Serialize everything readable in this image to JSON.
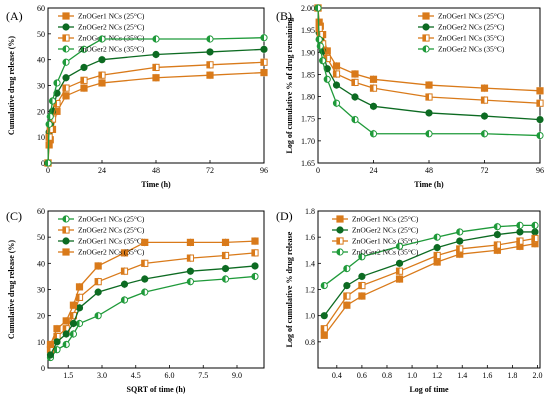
{
  "figure": {
    "colors": {
      "orange": "#d97a1a",
      "green": "#1f9a3a",
      "dark_green": "#0d6b22",
      "black": "#000000"
    }
  },
  "chart_data": [
    {
      "panel_label": "(A)",
      "type": "line",
      "xlabel": "Time (h)",
      "ylabel": "Cumulative drug release (%)",
      "xlim": [
        0,
        96
      ],
      "ylim": [
        0,
        60
      ],
      "xticks": [
        "0",
        "24",
        "48",
        "72",
        "96"
      ],
      "yticks": [
        "0",
        "10",
        "20",
        "30",
        "40",
        "50",
        "60"
      ],
      "legend": "top-left",
      "x": [
        0,
        0.5,
        1,
        2,
        4,
        8,
        16,
        24,
        48,
        72,
        96
      ],
      "series": [
        {
          "name": "ZnOGer1 NCs (25°C)",
          "marker": "square",
          "fill": "full",
          "color": "#d97a1a",
          "values": [
            0,
            7,
            9,
            13,
            20,
            26,
            29,
            31,
            33,
            34,
            35
          ]
        },
        {
          "name": "ZnOGer2 NCs (25°C)",
          "marker": "circle",
          "fill": "full",
          "color": "#0d6b22",
          "values": [
            0,
            12,
            15,
            20,
            27,
            33,
            37,
            40,
            42,
            43,
            44
          ]
        },
        {
          "name": "ZnOGer1 NCs (35°C)",
          "marker": "square",
          "fill": "half",
          "color": "#d97a1a",
          "values": [
            0,
            10,
            13,
            17,
            23,
            29,
            32,
            34,
            37,
            38,
            39
          ]
        },
        {
          "name": "ZnOGer2 NCs (35°C)",
          "marker": "circle",
          "fill": "half",
          "color": "#1f9a3a",
          "values": [
            0,
            15,
            18,
            24,
            31,
            39,
            44,
            48,
            48,
            48,
            48.5
          ]
        }
      ]
    },
    {
      "panel_label": "(B)",
      "type": "line",
      "xlabel": "Time (h)",
      "ylabel": "Log of cumulative % of drug remaining",
      "xlim": [
        0,
        96
      ],
      "ylim": [
        1.65,
        2.0
      ],
      "xticks": [
        "0",
        "24",
        "48",
        "72",
        "96"
      ],
      "yticks": [
        "1.65",
        "1.70",
        "1.75",
        "1.80",
        "1.85",
        "1.90",
        "1.95",
        "2.00"
      ],
      "legend": "top-right",
      "x": [
        0,
        0.5,
        1,
        2,
        4,
        8,
        16,
        24,
        48,
        72,
        96
      ],
      "series": [
        {
          "name": "ZnOGer1 NCs (25°C)",
          "marker": "square",
          "fill": "full",
          "color": "#d97a1a",
          "values": [
            2.0,
            1.968,
            1.959,
            1.94,
            1.903,
            1.869,
            1.851,
            1.839,
            1.826,
            1.819,
            1.813
          ]
        },
        {
          "name": "ZnOGer2 NCs (25°C)",
          "marker": "circle",
          "fill": "full",
          "color": "#0d6b22",
          "values": [
            2.0,
            1.944,
            1.929,
            1.903,
            1.863,
            1.826,
            1.799,
            1.778,
            1.763,
            1.756,
            1.748
          ]
        },
        {
          "name": "ZnOGer1 NCs (35°C)",
          "marker": "square",
          "fill": "half",
          "color": "#d97a1a",
          "values": [
            2.0,
            1.954,
            1.94,
            1.919,
            1.886,
            1.851,
            1.832,
            1.819,
            1.799,
            1.792,
            1.785
          ]
        },
        {
          "name": "ZnOGer2 NCs (35°C)",
          "marker": "circle",
          "fill": "half",
          "color": "#1f9a3a",
          "values": [
            2.0,
            1.929,
            1.914,
            1.881,
            1.839,
            1.785,
            1.748,
            1.716,
            1.716,
            1.716,
            1.712
          ]
        }
      ]
    },
    {
      "panel_label": "(C)",
      "type": "line",
      "xlabel": "SQRT of time (h)",
      "ylabel": "Cumulative drug release (%)",
      "xlim": [
        0.6,
        10.2
      ],
      "ylim": [
        0,
        60
      ],
      "xticks": [
        "1.5",
        "3.0",
        "4.5",
        "6.0",
        "7.5",
        "9.0"
      ],
      "xtick_values": [
        1.5,
        3.0,
        4.5,
        6.0,
        7.5,
        9.0
      ],
      "yticks": [
        "0",
        "10",
        "20",
        "30",
        "40",
        "50",
        "60"
      ],
      "legend": "top-left",
      "x": [
        0.71,
        1.0,
        1.41,
        1.73,
        2.0,
        2.83,
        4.0,
        4.9,
        6.93,
        8.49,
        9.8
      ],
      "series": [
        {
          "name": "ZnOGer1 NCs (25°C)",
          "marker": "circle",
          "fill": "half",
          "color": "#1f9a3a",
          "values": [
            4,
            7,
            9,
            13,
            17,
            20,
            26,
            29,
            33,
            34,
            35
          ]
        },
        {
          "name": "ZnOGer2 NCs (25°C)",
          "marker": "square",
          "fill": "half",
          "color": "#d97a1a",
          "values": [
            7,
            12,
            15,
            20,
            27,
            33,
            37,
            40,
            42,
            43,
            44
          ]
        },
        {
          "name": "ZnOGer1 NCs (35°C)",
          "marker": "circle",
          "fill": "full",
          "color": "#0d6b22",
          "values": [
            5,
            10,
            13,
            17,
            23,
            29,
            32,
            34,
            37,
            38,
            39
          ]
        },
        {
          "name": "ZnOGer2 NCs (35°C)",
          "marker": "square",
          "fill": "full",
          "color": "#d97a1a",
          "values": [
            9,
            15,
            18,
            24,
            31,
            39,
            44,
            48,
            48,
            48,
            48.5
          ]
        }
      ]
    },
    {
      "panel_label": "(D)",
      "type": "line",
      "xlabel": "Log of time",
      "ylabel": "Log of cumulative % drug release",
      "xlim": [
        0.25,
        2.02
      ],
      "ylim": [
        0.6,
        1.8
      ],
      "xticks": [
        "0.4",
        "0.6",
        "0.8",
        "1.0",
        "1.2",
        "1.4",
        "1.6",
        "1.8",
        "2.0"
      ],
      "xtick_values": [
        0.4,
        0.6,
        0.8,
        1.0,
        1.2,
        1.4,
        1.6,
        1.8,
        2.0
      ],
      "yticks": [
        "0.8",
        "1.0",
        "1.2",
        "1.4",
        "1.6",
        "1.8"
      ],
      "ytick_values": [
        0.8,
        1.0,
        1.2,
        1.4,
        1.6,
        1.8
      ],
      "legend": "top-left",
      "x": [
        0.3,
        0.48,
        0.6,
        0.9,
        1.2,
        1.38,
        1.68,
        1.86,
        1.98
      ],
      "series": [
        {
          "name": "ZnOGer1 NCs (25°C)",
          "marker": "square",
          "fill": "full",
          "color": "#d97a1a",
          "values": [
            0.85,
            1.08,
            1.15,
            1.28,
            1.41,
            1.47,
            1.5,
            1.53,
            1.55
          ]
        },
        {
          "name": "ZnOGer2 NCs (25°C)",
          "marker": "circle",
          "fill": "full",
          "color": "#0d6b22",
          "values": [
            1.0,
            1.23,
            1.3,
            1.4,
            1.52,
            1.57,
            1.62,
            1.64,
            1.64
          ]
        },
        {
          "name": "ZnOGer1 NCs (35°C)",
          "marker": "square",
          "fill": "half",
          "color": "#d97a1a",
          "values": [
            0.9,
            1.15,
            1.23,
            1.34,
            1.46,
            1.51,
            1.54,
            1.57,
            1.59
          ]
        },
        {
          "name": "ZnOGer2 NCs (35°C)",
          "marker": "circle",
          "fill": "half",
          "color": "#1f9a3a",
          "values": [
            1.23,
            1.36,
            1.45,
            1.53,
            1.6,
            1.64,
            1.68,
            1.69,
            1.69
          ]
        }
      ]
    }
  ]
}
